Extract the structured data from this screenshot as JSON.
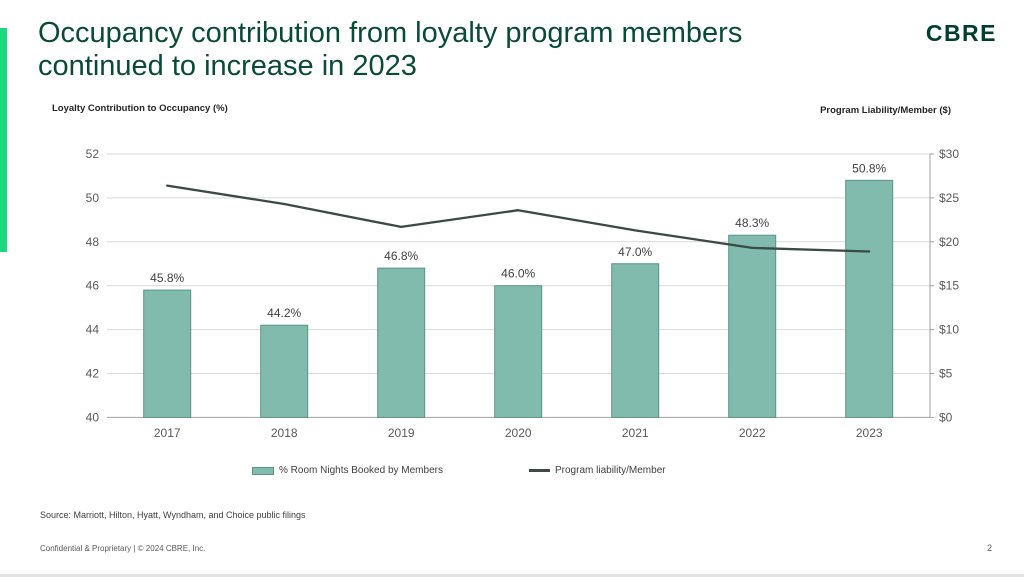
{
  "slide": {
    "title_line1": "Occupancy contribution from loyalty program members",
    "title_line2": "continued to increase in 2023",
    "logo_text": "CBRE",
    "source": "Source: Marriott, Hilton, Hyatt, Wyndham, and Choice public filings",
    "footer": "Confidential & Proprietary | © 2024 CBRE, Inc.",
    "page_number": "2"
  },
  "colors": {
    "accent_green": "#1ED87F",
    "title_green": "#0A4B38",
    "logo_green": "#003F2D",
    "bar_fill": "#80BBAD",
    "bar_stroke": "#5C9586",
    "line_color": "#3A4B44",
    "gridline": "#D9D9D9",
    "axis_line": "#A0A0A0",
    "tick_text": "#595959",
    "label_text": "#404040"
  },
  "chart_data": {
    "type": "bar+line combo",
    "left_axis_title": "Loyalty Contribution to Occupancy (%)",
    "right_axis_title": "Program Liability/Member ($)",
    "categories": [
      "2017",
      "2018",
      "2019",
      "2020",
      "2021",
      "2022",
      "2023"
    ],
    "series": [
      {
        "name": "% Room Nights Booked by Members",
        "type": "bar",
        "axis": "left",
        "values": [
          45.8,
          44.2,
          46.8,
          46.0,
          47.0,
          48.3,
          50.8
        ],
        "labels": [
          "45.8%",
          "44.2%",
          "46.8%",
          "46.0%",
          "47.0%",
          "48.3%",
          "50.8%"
        ]
      },
      {
        "name": "Program liability/Member",
        "type": "line",
        "axis": "right",
        "values": [
          26.4,
          24.3,
          21.7,
          23.6,
          21.3,
          19.3,
          18.9
        ]
      }
    ],
    "left_axis": {
      "min": 40,
      "max": 52,
      "step": 2,
      "ticks": [
        "40",
        "42",
        "44",
        "46",
        "48",
        "50",
        "52"
      ]
    },
    "right_axis": {
      "min": 0,
      "max": 30,
      "step": 5,
      "ticks": [
        "$0",
        "$5",
        "$10",
        "$15",
        "$20",
        "$25",
        "$30"
      ]
    },
    "grid": true,
    "legend_position": "bottom-center"
  }
}
